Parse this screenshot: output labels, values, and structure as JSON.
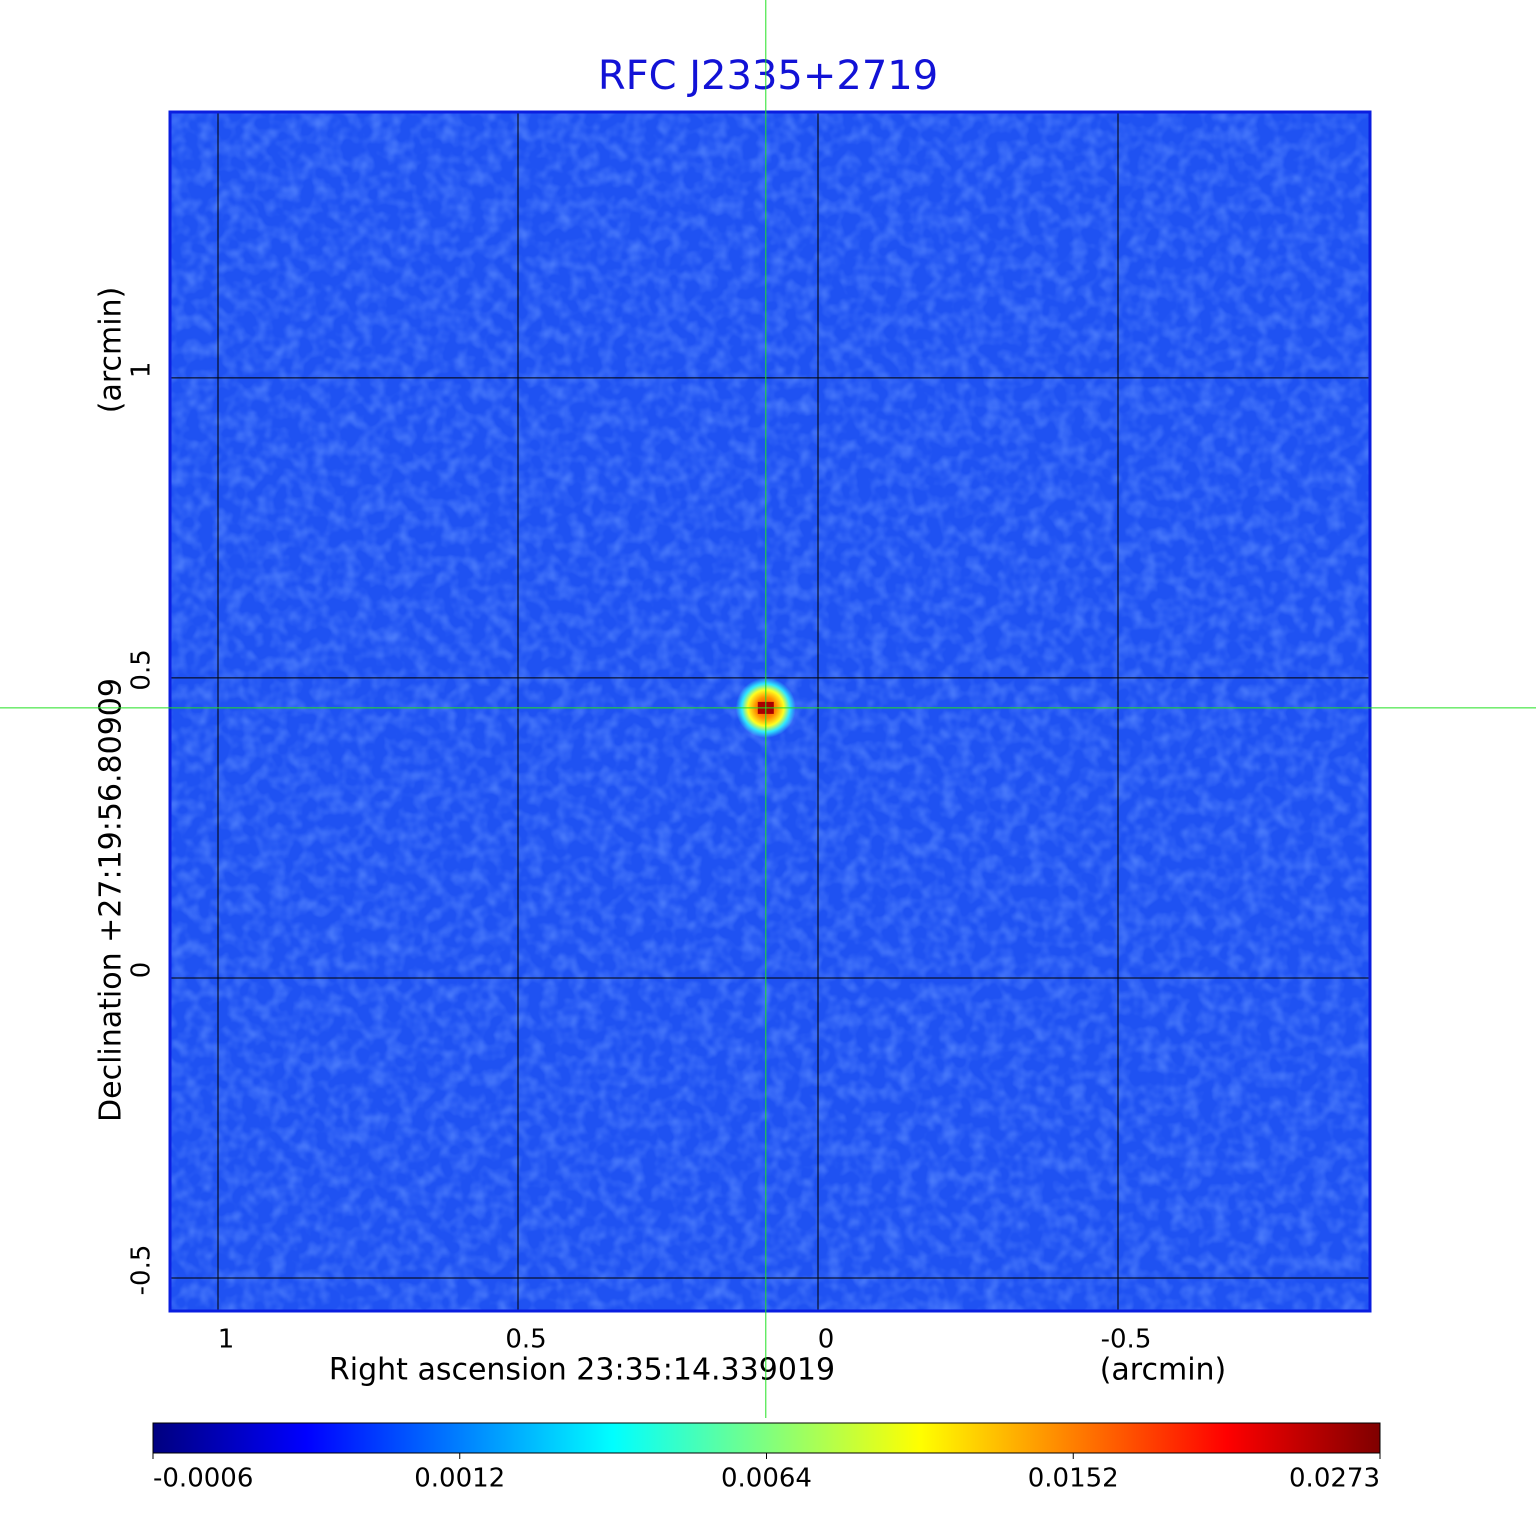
{
  "chart_data": {
    "type": "image",
    "title": "RFC J2335+2719",
    "xlabel": "Right ascension  23:35:14.339019",
    "xunit": "(arcmin)",
    "ylabel": "Declination  +27:19:56.80909",
    "yunit": "(arcmin)",
    "xlim": [
      1.08,
      -0.92
    ],
    "ylim": [
      -0.555,
      1.443
    ],
    "xticks": [
      1.0,
      0.5,
      0.0,
      -0.5
    ],
    "yticks": [
      -0.5,
      0.0,
      0.5,
      1.0
    ],
    "grid": true,
    "colormap": "jet",
    "background_color": "#1f52f2",
    "source": {
      "x": 0.087,
      "y": 0.45,
      "peak": 0.0273
    },
    "colorbar": {
      "ticks": [
        -0.0006,
        0.0012,
        0.0064,
        0.0152,
        0.0273
      ]
    }
  }
}
